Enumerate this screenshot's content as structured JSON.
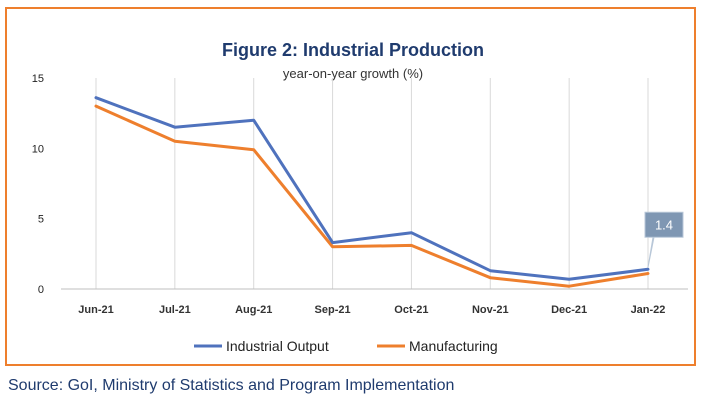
{
  "chart_data": {
    "type": "line",
    "title": "Figure 2: Industrial Production",
    "subtitle": "year-on-year growth (%)",
    "categories": [
      "Jun-21",
      "Jul-21",
      "Aug-21",
      "Sep-21",
      "Oct-21",
      "Nov-21",
      "Dec-21",
      "Jan-22"
    ],
    "series": [
      {
        "name": "Industrial Output",
        "color": "#4f72bd",
        "values": [
          13.6,
          11.5,
          12.0,
          3.3,
          4.0,
          1.3,
          0.7,
          1.4
        ]
      },
      {
        "name": "Manufacturing",
        "color": "#ee7f2d",
        "values": [
          13.0,
          10.5,
          9.9,
          3.0,
          3.1,
          0.8,
          0.2,
          1.1
        ]
      }
    ],
    "ylim": [
      0,
      15
    ],
    "yticks": [
      0,
      5,
      10,
      15
    ],
    "grid": "vertical",
    "legend": "bottom",
    "annotation": {
      "text": "1.4",
      "series": "Industrial Output",
      "category": "Jan-22"
    }
  },
  "frame_color": "#ee7f2d",
  "source": "Source: GoI, Ministry of Statistics and Program Implementation"
}
